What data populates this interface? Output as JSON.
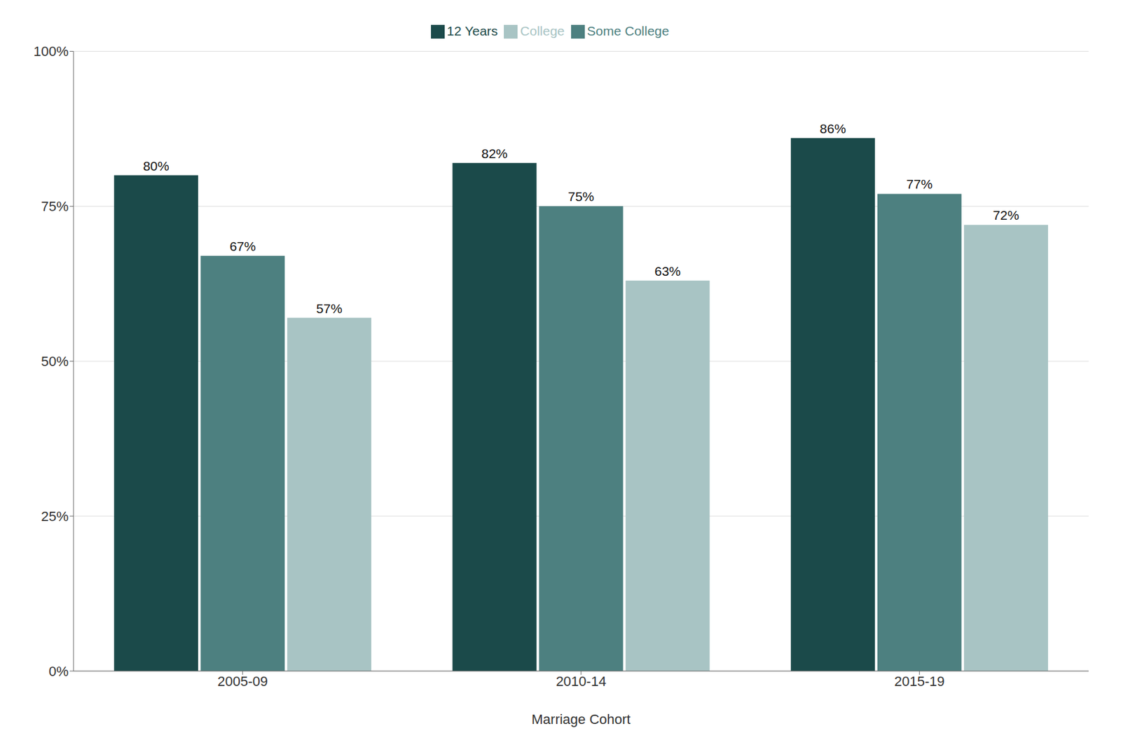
{
  "chart_data": {
    "type": "bar",
    "categories": [
      "2005-09",
      "2010-14",
      "2015-19"
    ],
    "series": [
      {
        "name": "12 Years",
        "color": "#1b4a4a",
        "values": [
          80,
          82,
          86
        ],
        "value_labels": [
          "80%",
          "82%",
          "86%"
        ]
      },
      {
        "name": "Some College",
        "color": "#4d8080",
        "values": [
          67,
          75,
          77
        ],
        "value_labels": [
          "67%",
          "75%",
          "77%"
        ]
      },
      {
        "name": "College",
        "color": "#a8c4c4",
        "values": [
          57,
          63,
          72
        ],
        "value_labels": [
          "57%",
          "63%",
          "72%"
        ]
      }
    ],
    "xlabel": "Marriage Cohort",
    "ylim": [
      0,
      100
    ],
    "yticks": [
      {
        "value": 0,
        "label": "0%"
      },
      {
        "value": 25,
        "label": "25%"
      },
      {
        "value": 50,
        "label": "50%"
      },
      {
        "value": 75,
        "label": "75%"
      },
      {
        "value": 100,
        "label": "100%"
      }
    ],
    "grid": true,
    "legend": "top",
    "data_labels": true
  }
}
